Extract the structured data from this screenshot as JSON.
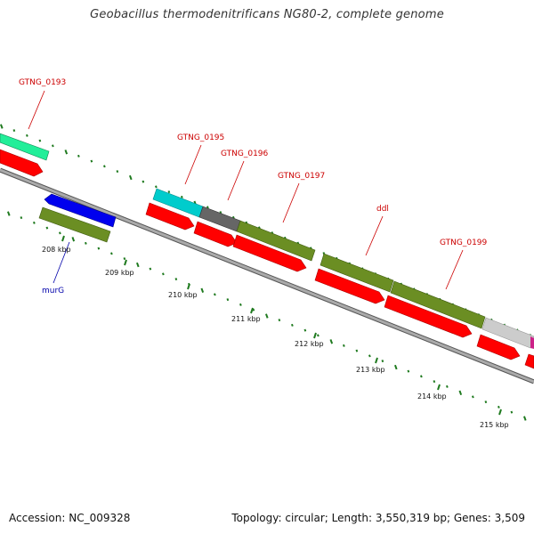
{
  "title": "Geobacillus thermodenitrificans NG80-2, complete genome",
  "accession": "Accession: NC_009328",
  "summary": "Topology: circular; Length: 3,550,319 bp; Genes: 3,509",
  "colors": {
    "backbone": "#999999",
    "dots": "#1f7a1f",
    "cds": "#ff0000",
    "label_red": "#cc0000",
    "label_blue": "#0000aa"
  },
  "gene_labels": [
    {
      "id": "GTNG_0193",
      "text": "GTNG_0193",
      "color": "#cc0000"
    },
    {
      "id": "GTNG_0195",
      "text": "GTNG_0195",
      "color": "#cc0000"
    },
    {
      "id": "GTNG_0196",
      "text": "GTNG_0196",
      "color": "#cc0000"
    },
    {
      "id": "GTNG_0197",
      "text": "GTNG_0197",
      "color": "#cc0000"
    },
    {
      "id": "ddl",
      "text": "ddl",
      "color": "#cc0000"
    },
    {
      "id": "GTNG_0199",
      "text": "GTNG_0199",
      "color": "#cc0000"
    },
    {
      "id": "murG",
      "text": "murG",
      "color": "#0000aa"
    }
  ],
  "scale_ticks": [
    "208 kbp",
    "209 kbp",
    "210 kbp",
    "211 kbp",
    "212 kbp",
    "213 kbp",
    "214 kbp",
    "215 kbp"
  ]
}
